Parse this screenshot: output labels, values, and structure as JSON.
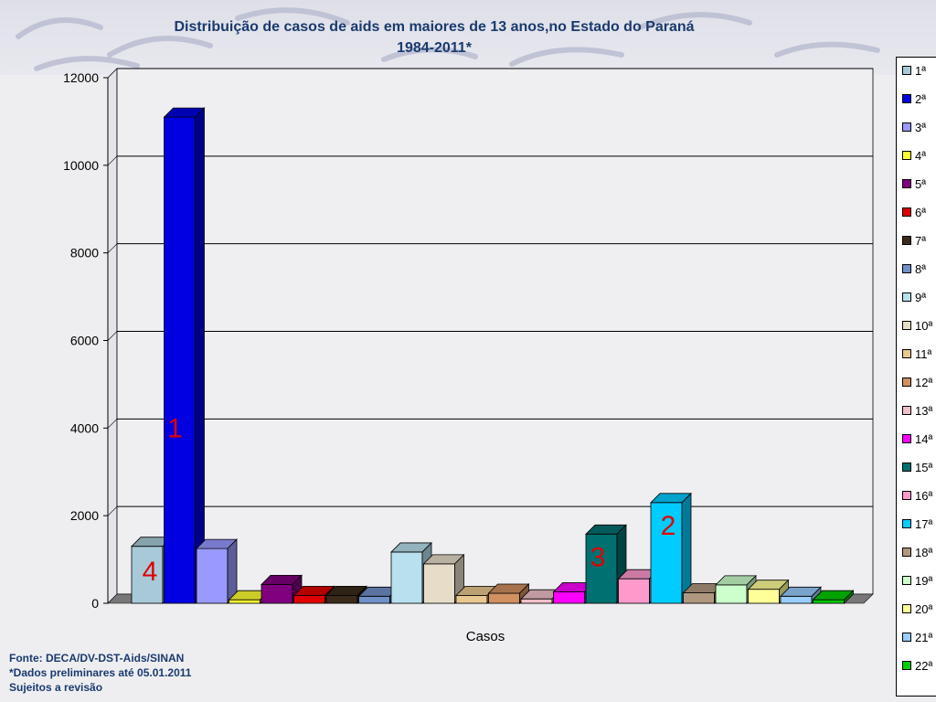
{
  "title_line1": "Distribuição de casos de aids em maiores de 13 anos,no Estado do Paraná",
  "title_line2": "1984-2011*",
  "footer": {
    "line1": "Fonte: DECA/DV-DST-Aids/SINAN",
    "line2": "*Dados preliminares até 05.01.2011",
    "line3": "Sujeitos a revisão"
  },
  "chart_data": {
    "type": "bar",
    "xlabel": "Casos",
    "ylabel": "",
    "ylim": [
      0,
      12000
    ],
    "yticks": [
      0,
      2000,
      4000,
      6000,
      8000,
      10000,
      12000
    ],
    "categories": [
      "Casos"
    ],
    "grid": true,
    "legend_position": "right",
    "series": [
      {
        "name": "1ª",
        "value": 1300,
        "color": "#a8cad8"
      },
      {
        "name": "2ª",
        "value": 11100,
        "color": "#0000e0"
      },
      {
        "name": "3ª",
        "value": 1250,
        "color": "#9999ff"
      },
      {
        "name": "4ª",
        "value": 80,
        "color": "#ffff33"
      },
      {
        "name": "5ª",
        "value": 430,
        "color": "#800080"
      },
      {
        "name": "6ª",
        "value": 180,
        "color": "#e00000"
      },
      {
        "name": "7ª",
        "value": 180,
        "color": "#3a2a1a"
      },
      {
        "name": "8ª",
        "value": 160,
        "color": "#7090c8"
      },
      {
        "name": "9ª",
        "value": 1170,
        "color": "#b8e0ee"
      },
      {
        "name": "10ª",
        "value": 900,
        "color": "#e6dcc8"
      },
      {
        "name": "11ª",
        "value": 180,
        "color": "#e8c890"
      },
      {
        "name": "12ª",
        "value": 230,
        "color": "#d09060"
      },
      {
        "name": "13ª",
        "value": 100,
        "color": "#f0c0c8"
      },
      {
        "name": "14ª",
        "value": 260,
        "color": "#ff00ff"
      },
      {
        "name": "15ª",
        "value": 1580,
        "color": "#007070"
      },
      {
        "name": "16ª",
        "value": 560,
        "color": "#ff99cc"
      },
      {
        "name": "17ª",
        "value": 2300,
        "color": "#00ccff"
      },
      {
        "name": "18ª",
        "value": 240,
        "color": "#b09880"
      },
      {
        "name": "19ª",
        "value": 420,
        "color": "#ccffcc"
      },
      {
        "name": "20ª",
        "value": 320,
        "color": "#ffff99"
      },
      {
        "name": "21ª",
        "value": 160,
        "color": "#99ccff"
      },
      {
        "name": "22ª",
        "value": 80,
        "color": "#00cc00"
      }
    ],
    "annotations": [
      {
        "text": "1",
        "series": "2ª"
      },
      {
        "text": "4",
        "series": "1ª"
      },
      {
        "text": "3",
        "series": "15ª"
      },
      {
        "text": "2",
        "series": "17ª"
      }
    ]
  }
}
